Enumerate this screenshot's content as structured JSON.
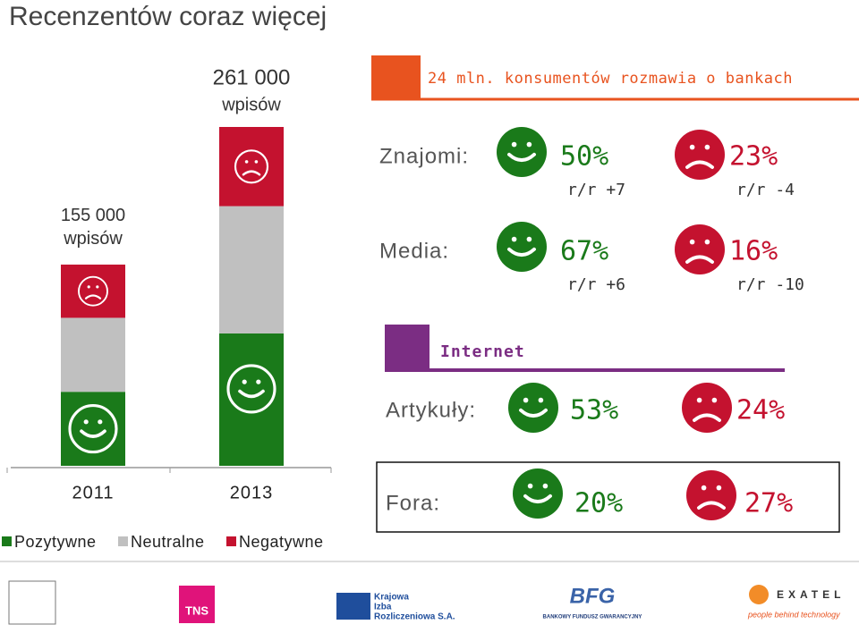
{
  "title": "Recenzentów coraz więcej",
  "chart_data": {
    "type": "stacked_bar",
    "categories": [
      "2011",
      "2013"
    ],
    "series": [
      {
        "name": "Pozytywne",
        "color": "#1a7a1a",
        "values": [
          57000,
          102000
        ]
      },
      {
        "name": "Neutralne",
        "color": "#c0c0c0",
        "values": [
          57000,
          98000
        ]
      },
      {
        "name": "Negatywne",
        "color": "#c4122f",
        "values": [
          41000,
          61000
        ]
      }
    ],
    "totals": [
      155000,
      261000
    ],
    "total_labels": [
      "155 000",
      "261 000"
    ],
    "total_unit": "wpisów",
    "ylim": [
      0,
      261000
    ]
  },
  "panel": {
    "header": "24 mln. konsumentów rozmawia o bankach",
    "rows": [
      {
        "label": "Znajomi:",
        "positive": "50%",
        "positive_change": "r/r +7",
        "negative": "23%",
        "negative_change": "r/r -4"
      },
      {
        "label": "Media:",
        "positive": "67%",
        "positive_change": "r/r +6",
        "negative": "16%",
        "negative_change": "r/r -10"
      }
    ],
    "internet": {
      "header": "Internet",
      "rows": [
        {
          "label": "Artykuły:",
          "positive": "53%",
          "negative": "24%"
        },
        {
          "label": "Fora:",
          "positive": "20%",
          "negative": "27%"
        }
      ]
    }
  },
  "logos": {
    "tns": "TNS",
    "kir": [
      "Krajowa",
      "Izba",
      "Rozliczeniowa S.A."
    ],
    "bfg": "BFG",
    "bfg_name": "BANKOWY FUNDUSZ GWARANCYJNY",
    "exatel": "EXATEL",
    "exatel_slogan": "people behind technology"
  }
}
